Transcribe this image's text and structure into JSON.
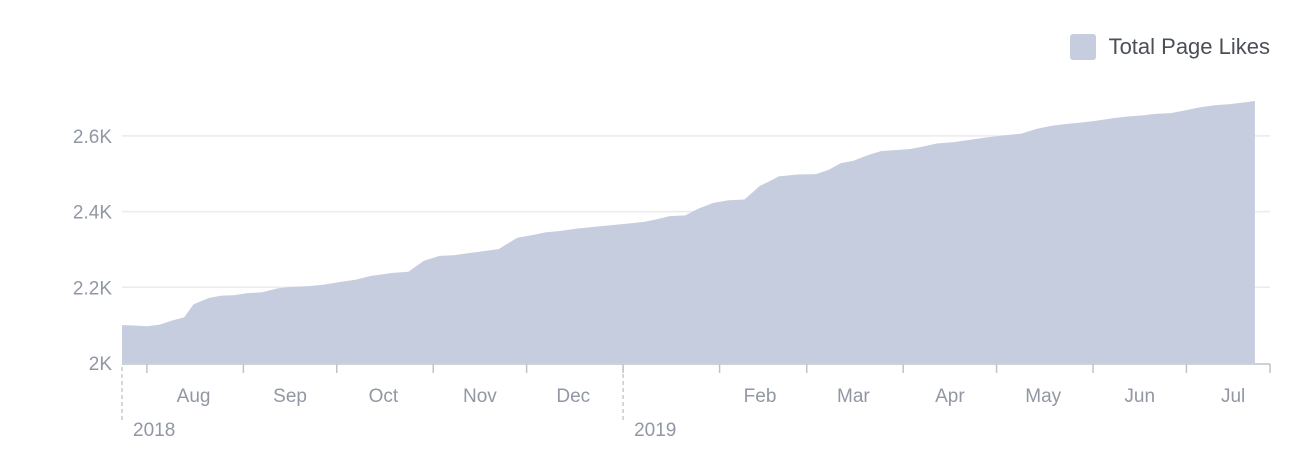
{
  "colors": {
    "area": "#c6cddf",
    "grid": "#e9ebee",
    "axis": "#bec3c9",
    "text": "#9197a3",
    "legend_text": "#4b4f56"
  },
  "legend": {
    "label": "Total Page Likes"
  },
  "chart_data": {
    "type": "area",
    "series": [
      {
        "name": "Total Page Likes",
        "x": [
          "2018-07-24",
          "2018-07-28",
          "2018-08-01",
          "2018-08-05",
          "2018-08-09",
          "2018-08-13",
          "2018-08-16",
          "2018-08-21",
          "2018-08-25",
          "2018-08-29",
          "2018-09-02",
          "2018-09-07",
          "2018-09-12",
          "2018-09-16",
          "2018-09-22",
          "2018-09-27",
          "2018-10-02",
          "2018-10-07",
          "2018-10-12",
          "2018-10-19",
          "2018-10-24",
          "2018-10-29",
          "2018-11-03",
          "2018-11-08",
          "2018-11-12",
          "2018-11-17",
          "2018-11-22",
          "2018-11-28",
          "2018-12-03",
          "2018-12-07",
          "2018-12-12",
          "2018-12-17",
          "2018-12-23",
          "2018-12-28",
          "2019-01-02",
          "2019-01-08",
          "2019-01-12",
          "2019-01-16",
          "2019-01-21",
          "2019-01-25",
          "2019-01-30",
          "2019-02-04",
          "2019-02-09",
          "2019-02-14",
          "2019-02-18",
          "2019-02-20",
          "2019-02-26",
          "2019-03-04",
          "2019-03-08",
          "2019-03-12",
          "2019-03-16",
          "2019-03-21",
          "2019-03-25",
          "2019-03-29",
          "2019-04-03",
          "2019-04-07",
          "2019-04-12",
          "2019-04-17",
          "2019-04-22",
          "2019-04-28",
          "2019-05-03",
          "2019-05-09",
          "2019-05-14",
          "2019-05-19",
          "2019-05-24",
          "2019-05-28",
          "2019-06-02",
          "2019-06-07",
          "2019-06-12",
          "2019-06-17",
          "2019-06-21",
          "2019-06-26",
          "2019-07-01",
          "2019-07-05",
          "2019-07-10",
          "2019-07-15",
          "2019-07-20",
          "2019-07-23"
        ],
        "values": [
          2100,
          2099,
          2097,
          2101,
          2112,
          2121,
          2155,
          2172,
          2178,
          2179,
          2184,
          2187,
          2197,
          2201,
          2203,
          2207,
          2214,
          2220,
          2230,
          2238,
          2241,
          2270,
          2283,
          2285,
          2290,
          2295,
          2301,
          2331,
          2338,
          2345,
          2349,
          2355,
          2360,
          2364,
          2368,
          2373,
          2380,
          2388,
          2390,
          2407,
          2423,
          2430,
          2432,
          2468,
          2484,
          2493,
          2498,
          2499,
          2510,
          2528,
          2534,
          2550,
          2560,
          2562,
          2565,
          2571,
          2580,
          2583,
          2589,
          2596,
          2601,
          2606,
          2619,
          2627,
          2632,
          2635,
          2640,
          2646,
          2651,
          2654,
          2658,
          2660,
          2668,
          2675,
          2681,
          2684,
          2689,
          2692
        ]
      }
    ],
    "ylim": [
      2000,
      2700
    ],
    "yticks": [
      2000,
      2200,
      2400,
      2600
    ],
    "ytick_labels": [
      "2K",
      "2.2K",
      "2.4K",
      "2.6K"
    ],
    "xlim": [
      "2018-07-24",
      "2019-07-24"
    ],
    "xtick_dates": [
      "2018-08-01",
      "2018-09-01",
      "2018-10-01",
      "2018-11-01",
      "2018-12-01",
      "2019-01-01",
      "2019-02-01",
      "2019-03-01",
      "2019-04-01",
      "2019-05-01",
      "2019-06-01",
      "2019-07-01",
      "2019-08-01"
    ],
    "month_labels": [
      {
        "date": "2018-08-16",
        "label": "Aug"
      },
      {
        "date": "2018-09-16",
        "label": "Sep"
      },
      {
        "date": "2018-10-16",
        "label": "Oct"
      },
      {
        "date": "2018-11-16",
        "label": "Nov"
      },
      {
        "date": "2018-12-16",
        "label": "Dec"
      },
      {
        "date": "2019-02-14",
        "label": "Feb"
      },
      {
        "date": "2019-03-16",
        "label": "Mar"
      },
      {
        "date": "2019-04-16",
        "label": "Apr"
      },
      {
        "date": "2019-05-16",
        "label": "May"
      },
      {
        "date": "2019-06-16",
        "label": "Jun"
      },
      {
        "date": "2019-07-16",
        "label": "Jul"
      }
    ],
    "year_markers": [
      {
        "date": "2018-07-24",
        "label": "2018"
      },
      {
        "date": "2019-01-01",
        "label": "2019"
      }
    ],
    "grid": true,
    "legend_position": "top-right"
  }
}
